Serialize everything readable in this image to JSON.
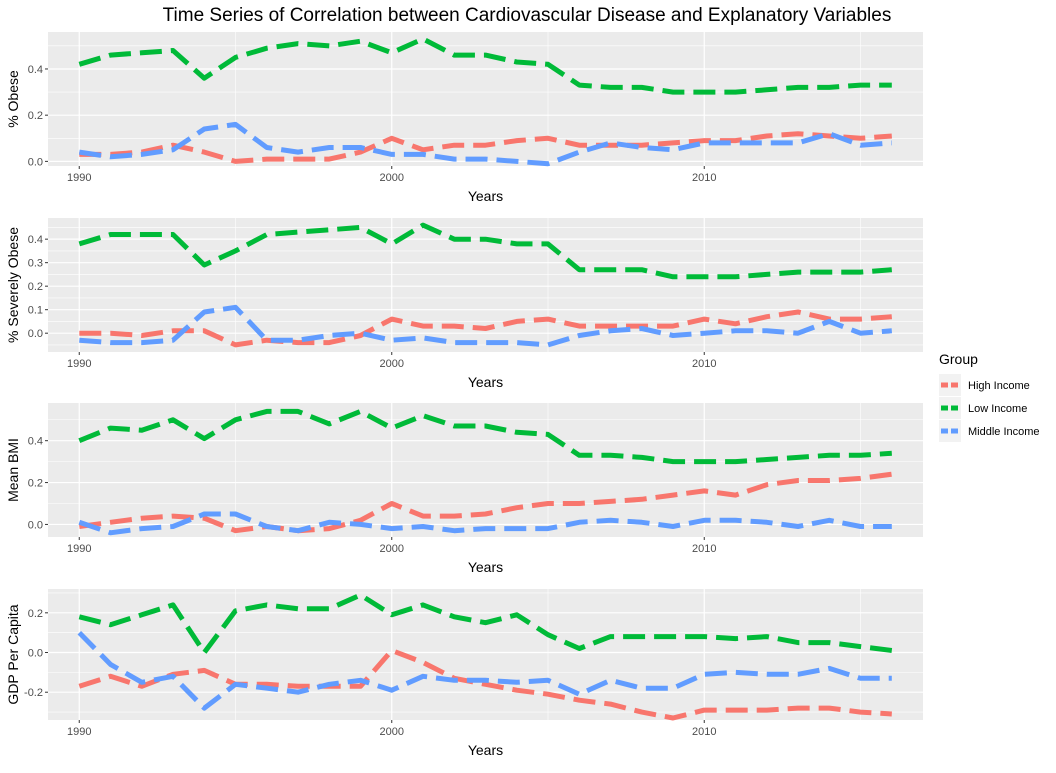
{
  "title": "Time Series of Correlation between Cardiovascular Disease and Explanatory Variables",
  "legend": {
    "title": "Group",
    "items": [
      {
        "label": "High Income",
        "color": "#F8766D"
      },
      {
        "label": "Low Income",
        "color": "#00BA38"
      },
      {
        "label": "Middle Income",
        "color": "#619CFF"
      }
    ]
  },
  "chart_data": [
    {
      "type": "line",
      "title": "",
      "xlabel": "Years",
      "ylabel": "% Obese",
      "xlim": [
        1989,
        2017
      ],
      "ylim": [
        -0.02,
        0.56
      ],
      "xticks": [
        1990,
        2000,
        2010
      ],
      "yticks": [
        0.0,
        0.2,
        0.4
      ],
      "ytick_labels": [
        "0.0",
        "0.2",
        "0.4"
      ],
      "x": [
        1990,
        1991,
        1992,
        1993,
        1994,
        1995,
        1996,
        1997,
        1998,
        1999,
        2000,
        2001,
        2002,
        2003,
        2004,
        2005,
        2006,
        2007,
        2008,
        2009,
        2010,
        2011,
        2012,
        2013,
        2014,
        2015,
        2016
      ],
      "series": [
        {
          "name": "High Income",
          "values": [
            0.03,
            0.03,
            0.04,
            0.07,
            0.04,
            0.0,
            0.01,
            0.01,
            0.01,
            0.04,
            0.1,
            0.05,
            0.07,
            0.07,
            0.09,
            0.1,
            0.07,
            0.07,
            0.07,
            0.08,
            0.09,
            0.09,
            0.11,
            0.12,
            0.11,
            0.1,
            0.11
          ]
        },
        {
          "name": "Low Income",
          "values": [
            0.42,
            0.46,
            0.47,
            0.48,
            0.36,
            0.45,
            0.49,
            0.51,
            0.5,
            0.52,
            0.47,
            0.53,
            0.46,
            0.46,
            0.43,
            0.42,
            0.33,
            0.32,
            0.32,
            0.3,
            0.3,
            0.3,
            0.31,
            0.32,
            0.32,
            0.33,
            0.33
          ]
        },
        {
          "name": "Middle Income",
          "values": [
            0.04,
            0.02,
            0.03,
            0.05,
            0.14,
            0.16,
            0.06,
            0.04,
            0.06,
            0.06,
            0.03,
            0.03,
            0.01,
            0.01,
            0.0,
            -0.01,
            0.04,
            0.08,
            0.06,
            0.05,
            0.08,
            0.08,
            0.08,
            0.08,
            0.12,
            0.07,
            0.08
          ]
        }
      ]
    },
    {
      "type": "line",
      "title": "",
      "xlabel": "Years",
      "ylabel": "% Severely Obese",
      "xlim": [
        1989,
        2017
      ],
      "ylim": [
        -0.08,
        0.49
      ],
      "xticks": [
        1990,
        2000,
        2010
      ],
      "yticks": [
        0.0,
        0.1,
        0.2,
        0.3,
        0.4
      ],
      "ytick_labels": [
        "0.0",
        "0.1",
        "0.2",
        "0.3",
        "0.4"
      ],
      "x": [
        1990,
        1991,
        1992,
        1993,
        1994,
        1995,
        1996,
        1997,
        1998,
        1999,
        2000,
        2001,
        2002,
        2003,
        2004,
        2005,
        2006,
        2007,
        2008,
        2009,
        2010,
        2011,
        2012,
        2013,
        2014,
        2015,
        2016
      ],
      "series": [
        {
          "name": "High Income",
          "values": [
            0.0,
            0.0,
            -0.01,
            0.01,
            0.01,
            -0.05,
            -0.03,
            -0.04,
            -0.04,
            -0.01,
            0.06,
            0.03,
            0.03,
            0.02,
            0.05,
            0.06,
            0.03,
            0.03,
            0.03,
            0.03,
            0.06,
            0.04,
            0.07,
            0.09,
            0.06,
            0.06,
            0.07
          ]
        },
        {
          "name": "Low Income",
          "values": [
            0.38,
            0.42,
            0.42,
            0.42,
            0.29,
            0.35,
            0.42,
            0.43,
            0.44,
            0.45,
            0.38,
            0.46,
            0.4,
            0.4,
            0.38,
            0.38,
            0.27,
            0.27,
            0.27,
            0.24,
            0.24,
            0.24,
            0.25,
            0.26,
            0.26,
            0.26,
            0.27
          ]
        },
        {
          "name": "Middle Income",
          "values": [
            -0.03,
            -0.04,
            -0.04,
            -0.03,
            0.09,
            0.11,
            -0.03,
            -0.03,
            -0.01,
            0.0,
            -0.03,
            -0.02,
            -0.04,
            -0.04,
            -0.04,
            -0.05,
            -0.01,
            0.01,
            0.02,
            -0.01,
            0.0,
            0.01,
            0.01,
            0.0,
            0.05,
            0.0,
            0.01
          ]
        }
      ]
    },
    {
      "type": "line",
      "title": "",
      "xlabel": "Years",
      "ylabel": "Mean BMI",
      "xlim": [
        1989,
        2017
      ],
      "ylim": [
        -0.06,
        0.58
      ],
      "xticks": [
        1990,
        2000,
        2010
      ],
      "yticks": [
        0.0,
        0.2,
        0.4
      ],
      "ytick_labels": [
        "0.0",
        "0.2",
        "0.4"
      ],
      "x": [
        1990,
        1991,
        1992,
        1993,
        1994,
        1995,
        1996,
        1997,
        1998,
        1999,
        2000,
        2001,
        2002,
        2003,
        2004,
        2005,
        2006,
        2007,
        2008,
        2009,
        2010,
        2011,
        2012,
        2013,
        2014,
        2015,
        2016
      ],
      "series": [
        {
          "name": "High Income",
          "values": [
            -0.01,
            0.01,
            0.03,
            0.04,
            0.03,
            -0.03,
            -0.01,
            -0.03,
            -0.02,
            0.02,
            0.1,
            0.04,
            0.04,
            0.05,
            0.08,
            0.1,
            0.1,
            0.11,
            0.12,
            0.14,
            0.16,
            0.14,
            0.19,
            0.21,
            0.21,
            0.22,
            0.24
          ]
        },
        {
          "name": "Low Income",
          "values": [
            0.4,
            0.46,
            0.45,
            0.5,
            0.41,
            0.5,
            0.54,
            0.54,
            0.48,
            0.54,
            0.46,
            0.52,
            0.47,
            0.47,
            0.44,
            0.43,
            0.33,
            0.33,
            0.32,
            0.3,
            0.3,
            0.3,
            0.31,
            0.32,
            0.33,
            0.33,
            0.34
          ]
        },
        {
          "name": "Middle Income",
          "values": [
            0.01,
            -0.04,
            -0.02,
            -0.01,
            0.05,
            0.05,
            -0.01,
            -0.03,
            0.01,
            0.0,
            -0.02,
            -0.01,
            -0.03,
            -0.02,
            -0.02,
            -0.02,
            0.01,
            0.02,
            0.01,
            -0.01,
            0.02,
            0.02,
            0.01,
            -0.01,
            0.02,
            -0.01,
            -0.01
          ]
        }
      ]
    },
    {
      "type": "line",
      "title": "",
      "xlabel": "Years",
      "ylabel": "GDP Per Capita",
      "xlim": [
        1989,
        2017
      ],
      "ylim": [
        -0.34,
        0.32
      ],
      "xticks": [
        1990,
        2000,
        2010
      ],
      "yticks": [
        -0.2,
        0.0,
        0.2
      ],
      "ytick_labels": [
        "-0.2",
        "0.0",
        "0.2"
      ],
      "x": [
        1990,
        1991,
        1992,
        1993,
        1994,
        1995,
        1996,
        1997,
        1998,
        1999,
        2000,
        2001,
        2002,
        2003,
        2004,
        2005,
        2006,
        2007,
        2008,
        2009,
        2010,
        2011,
        2012,
        2013,
        2014,
        2015,
        2016
      ],
      "series": [
        {
          "name": "High Income",
          "values": [
            -0.17,
            -0.12,
            -0.17,
            -0.11,
            -0.09,
            -0.16,
            -0.16,
            -0.17,
            -0.17,
            -0.17,
            0.01,
            -0.05,
            -0.13,
            -0.16,
            -0.19,
            -0.21,
            -0.24,
            -0.26,
            -0.3,
            -0.33,
            -0.29,
            -0.29,
            -0.29,
            -0.28,
            -0.28,
            -0.3,
            -0.31
          ]
        },
        {
          "name": "Low Income",
          "values": [
            0.18,
            0.14,
            0.19,
            0.24,
            0.0,
            0.21,
            0.24,
            0.22,
            0.22,
            0.29,
            0.19,
            0.24,
            0.18,
            0.15,
            0.19,
            0.09,
            0.02,
            0.08,
            0.08,
            0.08,
            0.08,
            0.07,
            0.08,
            0.05,
            0.05,
            0.03,
            0.01
          ]
        },
        {
          "name": "Middle Income",
          "values": [
            0.1,
            -0.06,
            -0.15,
            -0.12,
            -0.28,
            -0.16,
            -0.18,
            -0.2,
            -0.16,
            -0.14,
            -0.19,
            -0.12,
            -0.14,
            -0.14,
            -0.15,
            -0.14,
            -0.21,
            -0.14,
            -0.18,
            -0.18,
            -0.11,
            -0.1,
            -0.11,
            -0.11,
            -0.08,
            -0.13,
            -0.13
          ]
        }
      ]
    }
  ]
}
